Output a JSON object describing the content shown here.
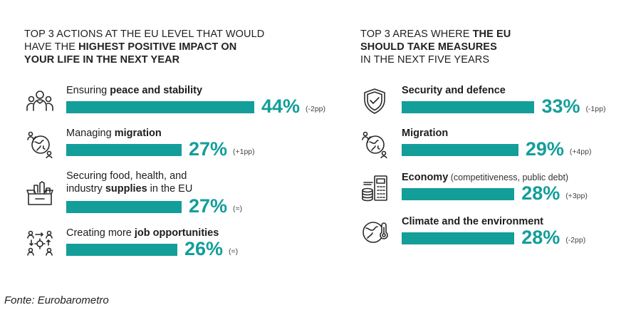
{
  "chart_data": [
    {
      "type": "bar",
      "title_parts": [
        {
          "text": "TOP 3 ACTIONS AT THE EU LEVEL THAT WOULD",
          "bold": false,
          "br": true
        },
        {
          "text": "HAVE THE ",
          "bold": false
        },
        {
          "text": "HIGHEST POSITIVE IMPACT ON",
          "bold": true,
          "br": true
        },
        {
          "text": "YOUR LIFE IN THE NEXT YEAR",
          "bold": true
        }
      ],
      "items": [
        {
          "label_parts": [
            {
              "text": "Ensuring ",
              "bold": false
            },
            {
              "text": "peace and stability",
              "bold": true
            }
          ],
          "value": 44,
          "value_label": "44%",
          "change": "(-2pp)",
          "icon": "people-group-icon"
        },
        {
          "label_parts": [
            {
              "text": "Managing ",
              "bold": false
            },
            {
              "text": "migration",
              "bold": true
            }
          ],
          "value": 27,
          "value_label": "27%",
          "change": "(+1pp)",
          "icon": "globe-people-icon"
        },
        {
          "label_parts": [
            {
              "text": "Securing food, health, and",
              "bold": false,
              "br": true
            },
            {
              "text": "industry ",
              "bold": false
            },
            {
              "text": "supplies",
              "bold": true
            },
            {
              "text": " in the EU",
              "bold": false
            }
          ],
          "value": 27,
          "value_label": "27%",
          "change": "(=)",
          "icon": "supply-box-icon"
        },
        {
          "label_parts": [
            {
              "text": "Creating more ",
              "bold": false
            },
            {
              "text": "job opportunities",
              "bold": true
            }
          ],
          "value": 26,
          "value_label": "26%",
          "change": "(=)",
          "icon": "people-network-icon"
        }
      ]
    },
    {
      "type": "bar",
      "title_parts": [
        {
          "text": "TOP 3 AREAS WHERE ",
          "bold": false
        },
        {
          "text": "THE EU",
          "bold": true,
          "br": true
        },
        {
          "text": "SHOULD TAKE MEASURES",
          "bold": true,
          "br": true
        },
        {
          "text": "IN THE NEXT FIVE YEARS",
          "bold": false
        }
      ],
      "items": [
        {
          "label_parts": [
            {
              "text": "Security and defence",
              "bold": true
            }
          ],
          "value": 33,
          "value_label": "33%",
          "change": "(-1pp)",
          "icon": "shield-check-icon"
        },
        {
          "label_parts": [
            {
              "text": "Migration",
              "bold": true
            }
          ],
          "value": 29,
          "value_label": "29%",
          "change": "(+4pp)",
          "icon": "globe-people-icon"
        },
        {
          "label_parts": [
            {
              "text": "Economy",
              "bold": true
            },
            {
              "text": " (competitiveness, public debt)",
              "bold": false,
              "small": true
            }
          ],
          "value": 28,
          "value_label": "28%",
          "change": "(+3pp)",
          "icon": "coins-calculator-icon"
        },
        {
          "label_parts": [
            {
              "text": "Climate and the environment",
              "bold": true
            }
          ],
          "value": 28,
          "value_label": "28%",
          "change": "(-2pp)",
          "icon": "globe-thermometer-icon"
        }
      ]
    }
  ],
  "colors": {
    "bar": "#139e9a",
    "text": "#1d1d1d"
  },
  "source": "Fonte: Eurobarometro"
}
